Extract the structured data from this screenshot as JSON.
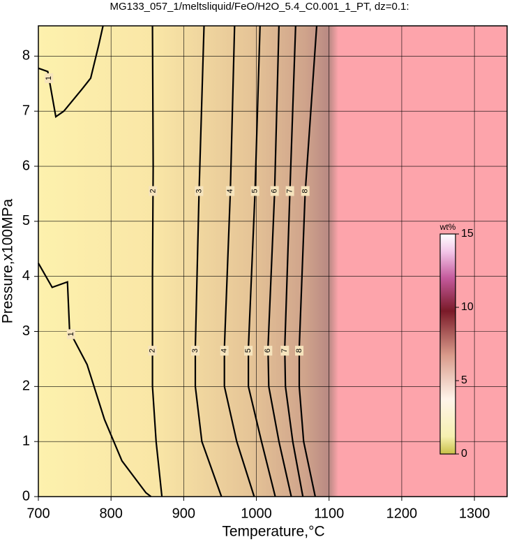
{
  "chart_data": {
    "type": "contour",
    "title": "MG133_057_1/meltsliquid/FeO/H2O_5.4_C0.001_1_PT, dz=0.1:",
    "xlabel": "Temperature,°C",
    "ylabel": "Pressure,x100MPa",
    "xlim": [
      700,
      1345
    ],
    "ylim": [
      0,
      8.55
    ],
    "xticks": [
      700,
      800,
      900,
      1000,
      1100,
      1200,
      1300
    ],
    "yticks": [
      0,
      1,
      2,
      3,
      4,
      5,
      6,
      7,
      8
    ],
    "grid": true,
    "contours": [
      {
        "level": 1,
        "x": [
          700,
          719,
          740,
          743,
          767,
          791,
          815,
          848,
          855
        ],
        "y": [
          4.24,
          3.8,
          3.9,
          3.0,
          2.4,
          1.4,
          0.65,
          0.07,
          0
        ]
      },
      {
        "level": 1,
        "x": [
          700,
          713,
          720,
          724,
          735,
          760,
          772,
          783,
          789
        ],
        "y": [
          7.78,
          7.72,
          7.2,
          6.9,
          7.0,
          7.4,
          7.6,
          8.2,
          8.55
        ]
      },
      {
        "level": 2,
        "x": [
          857,
          858,
          857,
          857,
          862,
          870
        ],
        "y": [
          8.55,
          6,
          4,
          2,
          1,
          0
        ]
      },
      {
        "level": 3,
        "x": [
          928,
          921,
          916,
          916,
          925,
          952
        ],
        "y": [
          8.55,
          5.5,
          2.7,
          2,
          1,
          0
        ]
      },
      {
        "level": 4,
        "x": [
          970,
          964,
          956,
          956,
          973,
          997
        ],
        "y": [
          8.55,
          5.5,
          2.7,
          2,
          1,
          0
        ]
      },
      {
        "level": 5,
        "x": [
          1005,
          998,
          989,
          989,
          1007,
          1026
        ],
        "y": [
          8.55,
          5.5,
          2.7,
          2,
          1,
          0
        ]
      },
      {
        "level": 6,
        "x": [
          1031,
          1025,
          1016,
          1017,
          1031,
          1048
        ],
        "y": [
          8.55,
          5.5,
          2.7,
          2,
          1,
          0
        ]
      },
      {
        "level": 7,
        "x": [
          1054,
          1046,
          1039,
          1040,
          1050,
          1064
        ],
        "y": [
          8.55,
          5.5,
          2.7,
          2,
          1,
          0
        ]
      },
      {
        "level": 8,
        "x": [
          1083,
          1067,
          1059,
          1059,
          1065,
          1081
        ],
        "y": [
          8.55,
          5.5,
          2.7,
          2,
          1,
          0
        ]
      }
    ],
    "colorbar": {
      "label": "wt%",
      "lim": [
        0,
        15
      ],
      "ticks": [
        0,
        5,
        10,
        15
      ]
    }
  }
}
